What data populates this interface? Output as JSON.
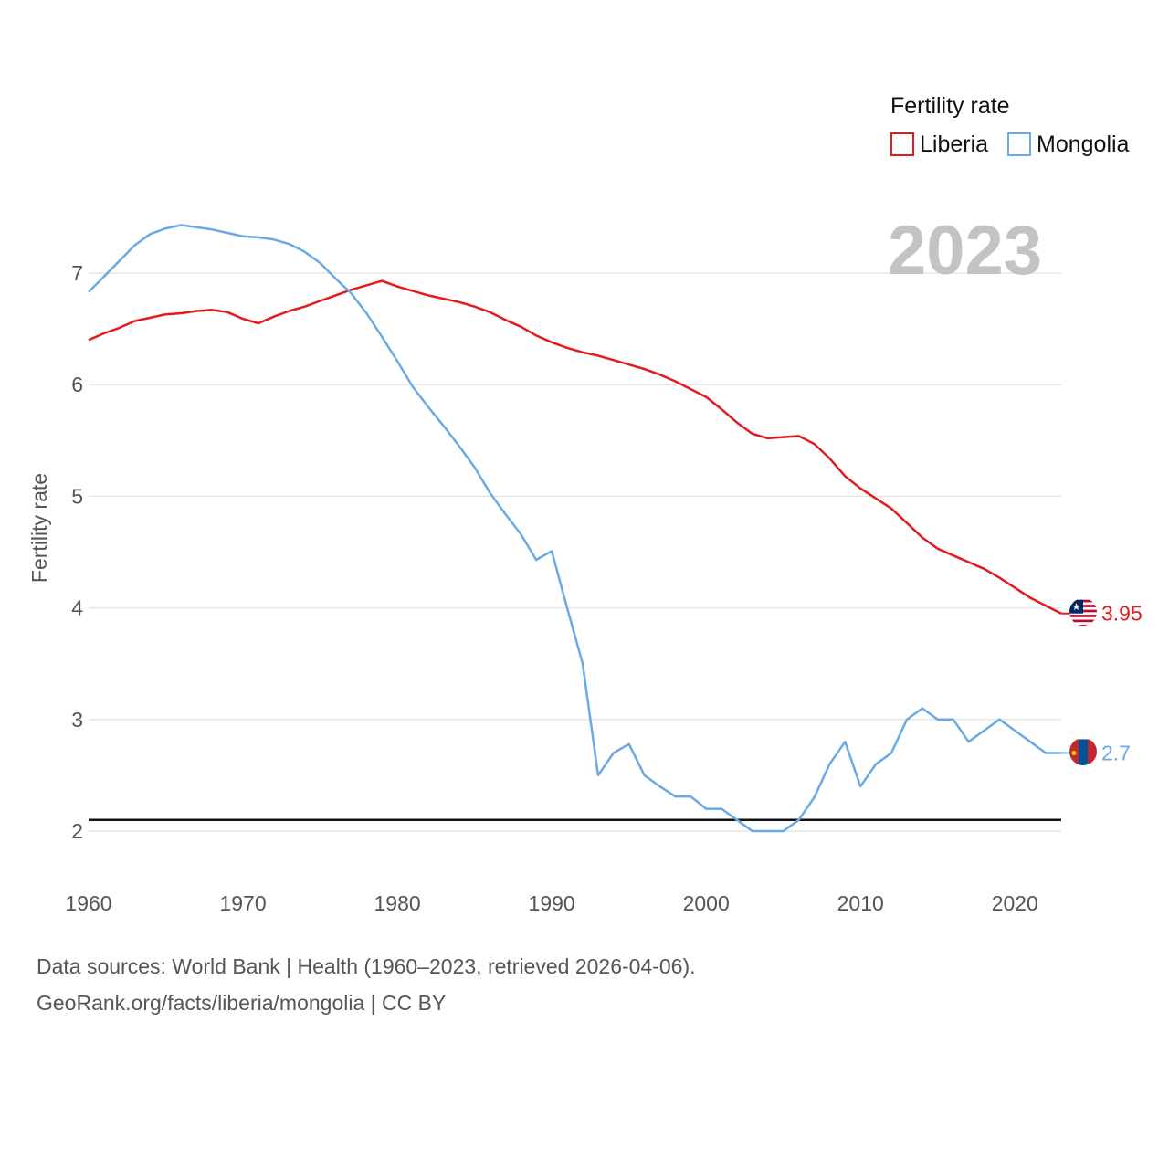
{
  "chart_data": {
    "type": "line",
    "legend_title": "Fertility rate",
    "ylabel": "Fertility rate",
    "year_label": "2023",
    "xlim": [
      1960,
      2023
    ],
    "ylim": [
      1.6,
      7.75
    ],
    "x_ticks": [
      1960,
      1970,
      1980,
      1990,
      2000,
      2010,
      2020
    ],
    "y_ticks": [
      2,
      3,
      4,
      5,
      6,
      7
    ],
    "reference_line": {
      "y": 2.1,
      "color": "#111111"
    },
    "x": [
      1960,
      1961,
      1962,
      1963,
      1964,
      1965,
      1966,
      1967,
      1968,
      1969,
      1970,
      1971,
      1972,
      1973,
      1974,
      1975,
      1976,
      1977,
      1978,
      1979,
      1980,
      1981,
      1982,
      1983,
      1984,
      1985,
      1986,
      1987,
      1988,
      1989,
      1990,
      1991,
      1992,
      1993,
      1994,
      1995,
      1996,
      1997,
      1998,
      1999,
      2000,
      2001,
      2002,
      2003,
      2004,
      2005,
      2006,
      2007,
      2008,
      2009,
      2010,
      2011,
      2012,
      2013,
      2014,
      2015,
      2016,
      2017,
      2018,
      2019,
      2020,
      2021,
      2022,
      2023
    ],
    "series": [
      {
        "name": "Liberia",
        "color": "#e41a1c",
        "end_label": "3.95",
        "values": [
          6.4,
          6.46,
          6.51,
          6.57,
          6.6,
          6.63,
          6.64,
          6.66,
          6.67,
          6.65,
          6.59,
          6.55,
          6.61,
          6.66,
          6.7,
          6.75,
          6.8,
          6.85,
          6.89,
          6.93,
          6.88,
          6.84,
          6.8,
          6.77,
          6.74,
          6.7,
          6.65,
          6.58,
          6.52,
          6.44,
          6.38,
          6.33,
          6.29,
          6.26,
          6.22,
          6.18,
          6.14,
          6.09,
          6.03,
          5.96,
          5.89,
          5.78,
          5.66,
          5.56,
          5.52,
          5.53,
          5.54,
          5.47,
          5.34,
          5.18,
          5.07,
          4.98,
          4.89,
          4.76,
          4.63,
          4.53,
          4.47,
          4.41,
          4.35,
          4.27,
          4.18,
          4.09,
          4.02,
          3.95
        ]
      },
      {
        "name": "Mongolia",
        "color": "#6aaae4",
        "end_label": "2.7",
        "values": [
          6.83,
          6.97,
          7.11,
          7.25,
          7.35,
          7.4,
          7.43,
          7.41,
          7.39,
          7.36,
          7.33,
          7.32,
          7.3,
          7.26,
          7.19,
          7.09,
          6.95,
          6.82,
          6.64,
          6.43,
          6.21,
          5.98,
          5.8,
          5.63,
          5.45,
          5.26,
          5.03,
          4.84,
          4.66,
          4.43,
          4.51,
          4.0,
          3.5,
          2.5,
          2.7,
          2.78,
          2.5,
          2.4,
          2.31,
          2.31,
          2.2,
          2.2,
          2.1,
          2.0,
          2.0,
          2.0,
          2.1,
          2.3,
          2.6,
          2.8,
          2.4,
          2.6,
          2.7,
          3.0,
          3.1,
          3.0,
          3.0,
          2.8,
          2.9,
          3.0,
          2.9,
          2.8,
          2.7,
          2.7
        ]
      }
    ]
  },
  "footer": {
    "line1": "Data sources: World Bank | Health (1960–2023, retrieved 2026-04-06).",
    "line2": "GeoRank.org/facts/liberia/mongolia | CC BY"
  }
}
